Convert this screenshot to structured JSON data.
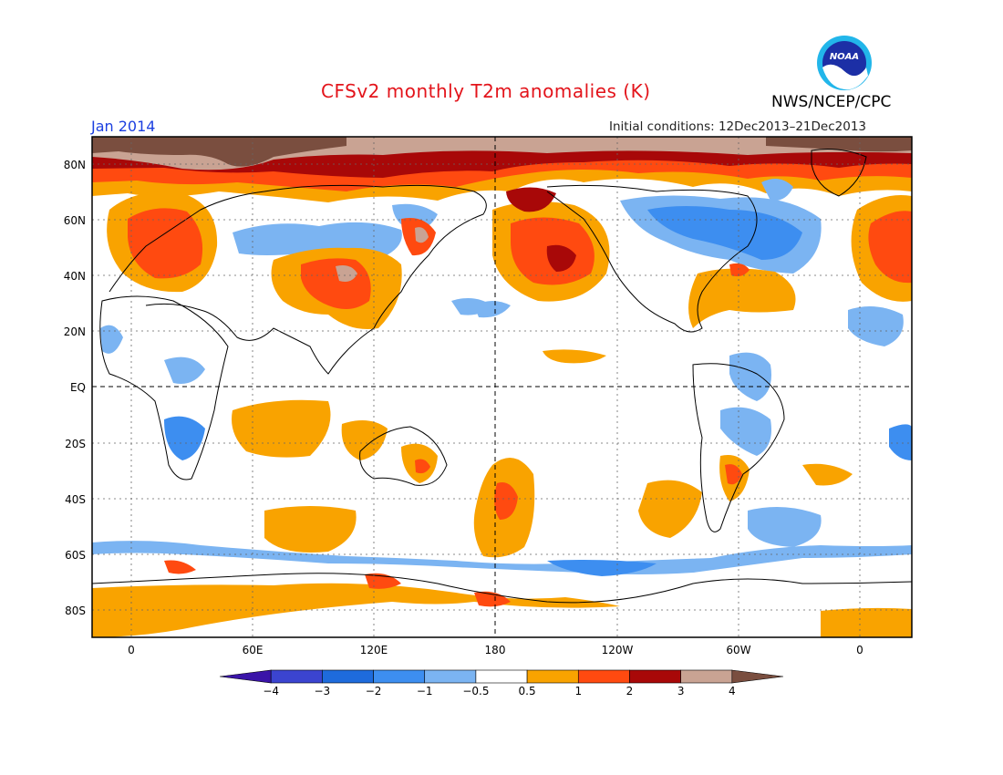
{
  "title": "CFSv2 monthly T2m anomalies (K)",
  "valid_month": "Jan 2014",
  "initial_conditions": "Initial conditions: 12Dec2013–21Dec2013",
  "agency": "NWS/NCEP/CPC",
  "logo_text": "NOAA",
  "lat_labels": [
    "80N",
    "60N",
    "40N",
    "20N",
    "EQ",
    "20S",
    "40S",
    "60S",
    "80S"
  ],
  "lon_labels": [
    "0",
    "60E",
    "120E",
    "180",
    "120W",
    "60W",
    "0"
  ],
  "colorbar": {
    "labels": [
      "−4",
      "−3",
      "−2",
      "−1",
      "−0.5",
      "0.5",
      "1",
      "2",
      "3",
      "4"
    ],
    "colors": [
      "#3a14a8",
      "#3b44d0",
      "#1e6bdc",
      "#3d8ef0",
      "#7bb4f2",
      "#ffffff",
      "#f9a300",
      "#ff4a10",
      "#a80808",
      "#c9a393",
      "#7a4e3f"
    ]
  },
  "colors": {
    "title": "#e3141b",
    "month": "#1b3fe0",
    "map_frame": "#000000",
    "gridline": "#666666"
  }
}
